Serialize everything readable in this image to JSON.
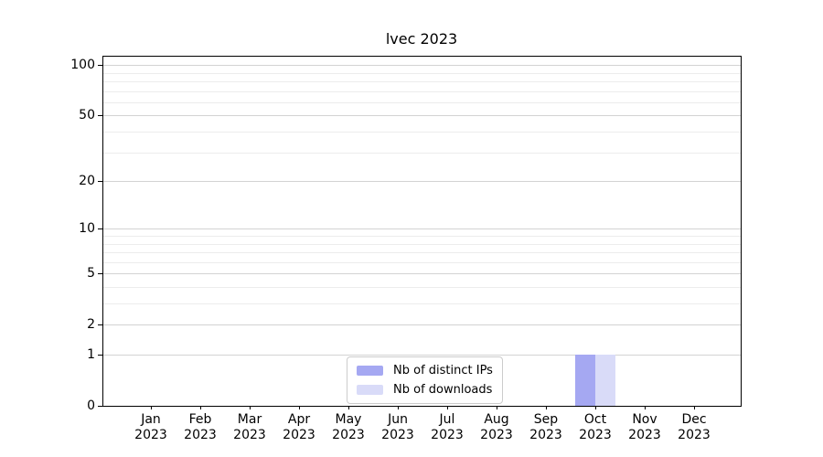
{
  "title": "lvec 2023",
  "colors": {
    "distinct_ips": "#a5a8f2",
    "downloads": "#d9dbf8",
    "grid_major": "#d3d3d3",
    "grid_minor": "#ececec",
    "axis": "#000000",
    "legend_border": "#cccccc",
    "background": "#ffffff"
  },
  "chart_data": {
    "type": "bar",
    "title": "lvec 2023",
    "categories": [
      "Jan 2023",
      "Feb 2023",
      "Mar 2023",
      "Apr 2023",
      "May 2023",
      "Jun 2023",
      "Jul 2023",
      "Aug 2023",
      "Sep 2023",
      "Oct 2023",
      "Nov 2023",
      "Dec 2023"
    ],
    "x_ticks": [
      {
        "month": "Jan",
        "year": "2023"
      },
      {
        "month": "Feb",
        "year": "2023"
      },
      {
        "month": "Mar",
        "year": "2023"
      },
      {
        "month": "Apr",
        "year": "2023"
      },
      {
        "month": "May",
        "year": "2023"
      },
      {
        "month": "Jun",
        "year": "2023"
      },
      {
        "month": "Jul",
        "year": "2023"
      },
      {
        "month": "Aug",
        "year": "2023"
      },
      {
        "month": "Sep",
        "year": "2023"
      },
      {
        "month": "Oct",
        "year": "2023"
      },
      {
        "month": "Nov",
        "year": "2023"
      },
      {
        "month": "Dec",
        "year": "2023"
      }
    ],
    "series": [
      {
        "name": "Nb of distinct IPs",
        "values": [
          0,
          0,
          0,
          0,
          0,
          0,
          0,
          0,
          0,
          1,
          0,
          0
        ]
      },
      {
        "name": "Nb of downloads",
        "values": [
          0,
          0,
          0,
          0,
          0,
          0,
          0,
          0,
          0,
          1,
          0,
          0
        ]
      }
    ],
    "y_scale": "log1p",
    "ylim": [
      0,
      112
    ],
    "y_ticks": [
      0,
      1,
      2,
      5,
      10,
      20,
      50,
      100
    ],
    "y_minor_gridlines": [
      3,
      4,
      6,
      7,
      8,
      9,
      30,
      40,
      60,
      70,
      80,
      90
    ],
    "grid": true,
    "legend_position": "lower center",
    "xlabel": "",
    "ylabel": ""
  }
}
